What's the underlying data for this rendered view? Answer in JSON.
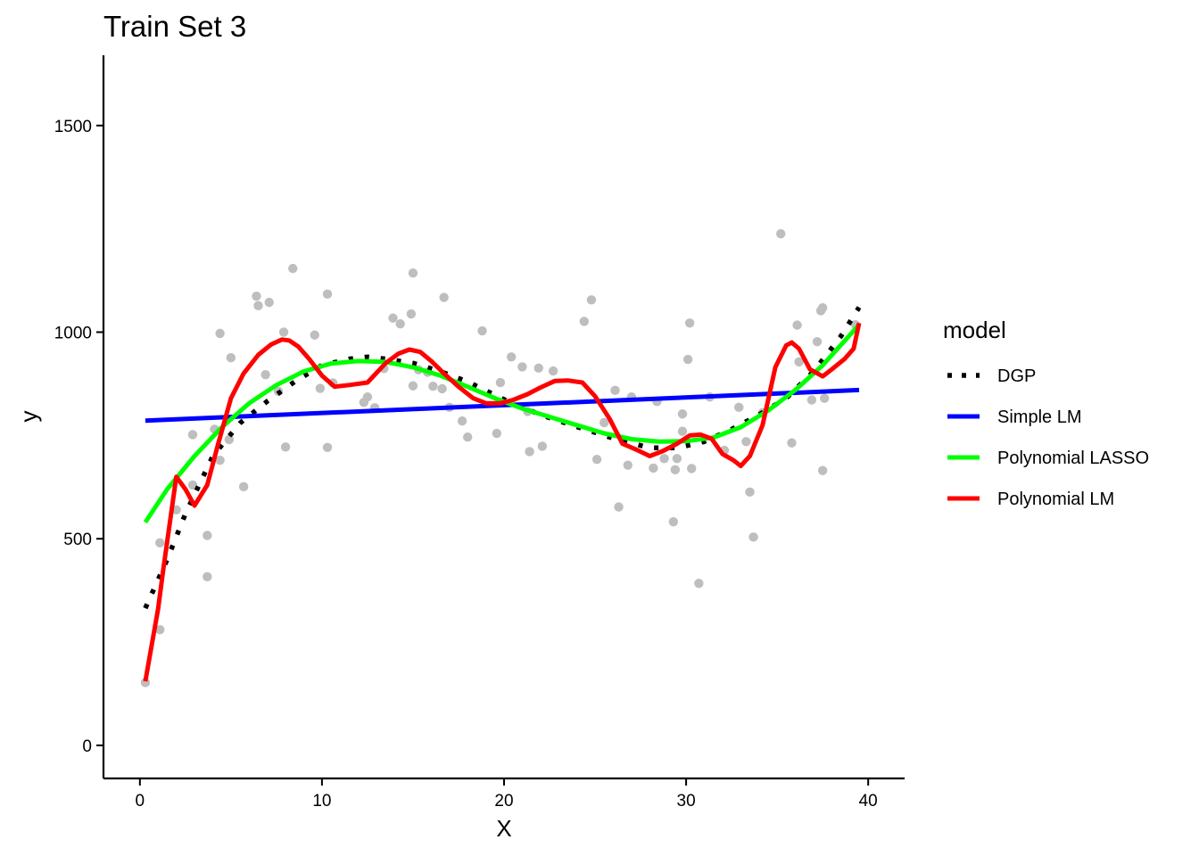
{
  "chart_data": {
    "type": "scatter",
    "title": "Train Set 3",
    "xlabel": "X",
    "ylabel": "y",
    "xlim": [
      -2,
      42
    ],
    "ylim": [
      -80,
      1670
    ],
    "xticks": [
      0,
      10,
      20,
      30,
      40
    ],
    "yticks": [
      0,
      500,
      1000,
      1500
    ],
    "grid": false,
    "legend": {
      "title": "model",
      "position": "right",
      "entries": [
        {
          "label": "DGP",
          "color": "#000000",
          "style": "dotted"
        },
        {
          "label": "Simple LM",
          "color": "#0000FF",
          "style": "solid"
        },
        {
          "label": "Polynomial LASSO",
          "color": "#00FF00",
          "style": "solid"
        },
        {
          "label": "Polynomial LM",
          "color": "#FF0000",
          "style": "solid"
        }
      ]
    },
    "points": {
      "color": "#BEBEBE",
      "x": [
        0.3,
        1.1,
        1.1,
        2.0,
        2.9,
        2.9,
        3.7,
        3.7,
        4.1,
        4.4,
        4.4,
        4.9,
        5.0,
        5.7,
        6.4,
        6.5,
        6.9,
        7.1,
        7.6,
        7.9,
        8.0,
        8.4,
        9.6,
        9.9,
        10.3,
        10.3,
        10.6,
        12.3,
        12.5,
        12.9,
        13.4,
        13.9,
        14.3,
        14.9,
        15.0,
        15.0,
        15.3,
        15.8,
        16.1,
        16.6,
        16.7,
        17.0,
        17.7,
        18.0,
        18.8,
        19.6,
        19.8,
        20.4,
        21.0,
        21.3,
        21.4,
        21.9,
        22.1,
        22.7,
        24.4,
        24.8,
        25.1,
        25.5,
        26.1,
        26.3,
        26.8,
        27.0,
        28.2,
        28.4,
        28.8,
        29.3,
        29.4,
        29.5,
        29.8,
        29.8,
        30.1,
        30.2,
        30.3,
        30.7,
        31.3,
        32.1,
        32.9,
        33.3,
        33.5,
        33.7,
        34.2,
        35.2,
        35.8,
        36.1,
        36.2,
        36.9,
        37.2,
        37.4,
        37.5,
        37.5,
        37.6,
        39.3
      ],
      "y": [
        152,
        280,
        490,
        570,
        630,
        752,
        408,
        508,
        765,
        997,
        690,
        740,
        938,
        626,
        1087,
        1064,
        897,
        1072,
        857,
        1000,
        722,
        1154,
        993,
        864,
        1092,
        721,
        877,
        830,
        843,
        817,
        912,
        1034,
        1020,
        1044,
        1143,
        870,
        909,
        903,
        869,
        863,
        1084,
        818,
        785,
        746,
        1003,
        755,
        878,
        940,
        916,
        808,
        711,
        913,
        724,
        906,
        1026,
        1078,
        692,
        781,
        859,
        577,
        678,
        843,
        671,
        832,
        694,
        541,
        667,
        694,
        802,
        760,
        934,
        1022,
        670,
        392,
        843,
        714,
        818,
        735,
        613,
        504,
        805,
        1238,
        732,
        1017,
        928,
        836,
        977,
        1052,
        1059,
        665,
        840,
        1018
      ]
    },
    "series": [
      {
        "name": "DGP",
        "color": "#000000",
        "style": "dotted",
        "x": [
          0.3,
          1.5,
          2.5,
          4.0,
          5.5,
          7.0,
          8.5,
          10.0,
          11.5,
          12.5,
          13.5,
          15.0,
          16.5,
          18.0,
          20.0,
          22.0,
          24.0,
          26.0,
          28.0,
          29.5,
          31.0,
          32.5,
          34.0,
          35.5,
          37.0,
          38.5,
          39.5
        ],
        "y": [
          332,
          450,
          560,
          700,
          780,
          833,
          880,
          920,
          935,
          940,
          935,
          925,
          905,
          880,
          837,
          800,
          771,
          743,
          720,
          720,
          735,
          765,
          800,
          840,
          905,
          990,
          1060
        ]
      },
      {
        "name": "Simple LM",
        "color": "#0000FF",
        "style": "solid",
        "x": [
          0.3,
          39.5
        ],
        "y": [
          786,
          860
        ]
      },
      {
        "name": "Polynomial LASSO",
        "color": "#00FF00",
        "style": "solid",
        "x": [
          0.3,
          1.5,
          3.0,
          4.5,
          6.0,
          7.5,
          9.0,
          10.5,
          12.0,
          13.5,
          15.0,
          16.5,
          18.0,
          19.5,
          21.0,
          22.5,
          24.0,
          25.5,
          27.0,
          28.5,
          30.0,
          31.5,
          33.0,
          34.5,
          36.0,
          37.5,
          39.5
        ],
        "y": [
          540,
          620,
          700,
          770,
          828,
          872,
          905,
          924,
          930,
          928,
          915,
          895,
          868,
          840,
          815,
          795,
          775,
          755,
          741,
          735,
          736,
          745,
          770,
          810,
          860,
          920,
          1018
        ]
      },
      {
        "name": "Polynomial LM",
        "color": "#FF0000",
        "style": "solid",
        "x": [
          0.3,
          1.0,
          1.3,
          2.0,
          2.5,
          3.0,
          3.7,
          4.3,
          5.0,
          5.7,
          6.5,
          7.2,
          7.8,
          8.2,
          8.7,
          9.3,
          10.0,
          10.7,
          11.5,
          12.5,
          13.5,
          14.2,
          14.8,
          15.4,
          16.0,
          16.7,
          17.5,
          18.3,
          19.0,
          19.8,
          20.5,
          21.3,
          22.0,
          22.8,
          23.5,
          24.3,
          25.0,
          25.8,
          26.5,
          27.3,
          28.0,
          28.7,
          29.5,
          30.2,
          30.8,
          31.4,
          32.0,
          32.6,
          33.0,
          33.5,
          34.2,
          34.9,
          35.5,
          35.8,
          36.2,
          36.8,
          37.5,
          38.0,
          38.7,
          39.2,
          39.5
        ],
        "y": [
          155,
          330,
          430,
          650,
          620,
          580,
          630,
          730,
          840,
          900,
          945,
          970,
          982,
          980,
          965,
          935,
          895,
          868,
          872,
          878,
          925,
          948,
          958,
          952,
          930,
          900,
          868,
          840,
          828,
          828,
          836,
          850,
          866,
          882,
          883,
          878,
          845,
          790,
          730,
          715,
          700,
          712,
          730,
          750,
          752,
          742,
          705,
          690,
          676,
          700,
          775,
          915,
          968,
          975,
          960,
          910,
          893,
          910,
          935,
          960,
          1022
        ]
      }
    ]
  }
}
